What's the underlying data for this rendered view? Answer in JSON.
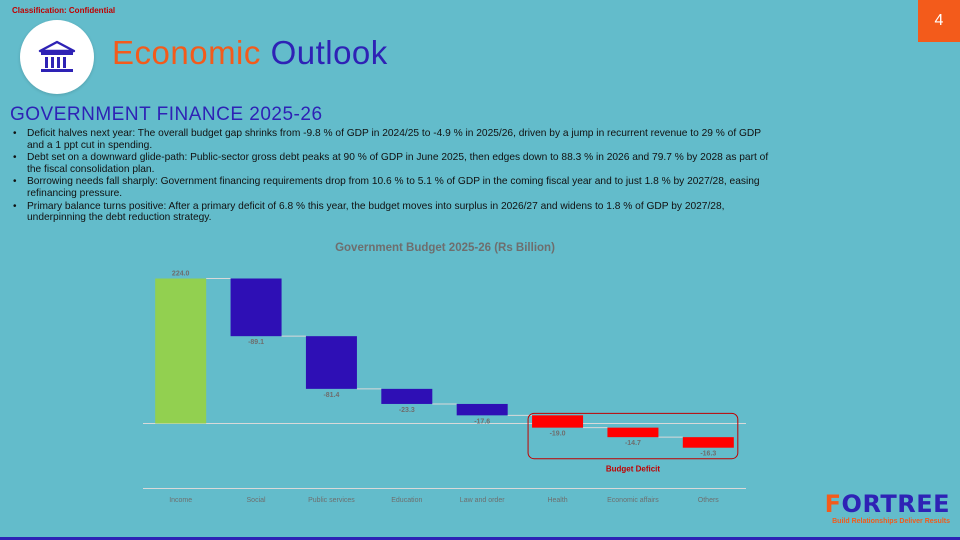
{
  "header": {
    "classification": "Classification: Confidential",
    "page_number": "4",
    "title_word1": "Economic",
    "title_word2": "Outlook",
    "logo_icon": "bank-building-icon"
  },
  "section": {
    "heading": "GOVERNMENT FINANCE 2025-26",
    "bullets": [
      "Deficit halves next year: The overall budget gap shrinks from -9.8 % of GDP in 2024/25 to -4.9 % in 2025/26, driven by a jump in recurrent revenue to 29 % of GDP and a 1 ppt cut in spending.",
      "Debt set on a downward glide-path: Public-sector gross debt peaks at 90 % of GDP in June 2025, then edges down to 88.3 % in 2026 and 79.7 % by 2028 as part of the fiscal consolidation plan.",
      "Borrowing needs fall sharply: Government financing requirements drop from 10.6 % to 5.1 % of GDP in the coming fiscal year and to just 1.8 % by 2027/28, easing refinancing pressure.",
      "Primary balance turns positive: After a primary deficit of 6.8 % this year, the budget moves into surplus in 2026/27 and widens to 1.8 % of GDP by 2027/28, underpinning the debt reduction strategy."
    ]
  },
  "chart_data": {
    "type": "waterfall",
    "title": "Government Budget 2025-26 (Rs Billion)",
    "categories": [
      "Income",
      "Social",
      "Public services",
      "Education",
      "Law and order",
      "Health",
      "Economic affairs",
      "Others"
    ],
    "values": [
      224.0,
      -89.1,
      -81.4,
      -23.3,
      -17.6,
      -19.0,
      -14.7,
      -16.3
    ],
    "labels": [
      "224.0",
      "-89.1",
      "-81.4",
      "-23.3",
      "-17.6",
      "-19.0",
      "-14.7",
      "-16.3"
    ],
    "bar_kinds": [
      "total",
      "decrease",
      "decrease",
      "decrease",
      "decrease",
      "deficit",
      "deficit",
      "deficit"
    ],
    "colors": {
      "total": "#92d050",
      "decrease": "#2e0fb5",
      "deficit": "#ff0000",
      "connector": "#d9d9d9",
      "annotation": "#c00000"
    },
    "annotation": "Budget Deficit",
    "ylim": [
      -35,
      240
    ]
  },
  "footer": {
    "brand_name_first": "F",
    "brand_name_rest": "ORTREE",
    "tagline": "Build Relationships Deliver Results"
  }
}
